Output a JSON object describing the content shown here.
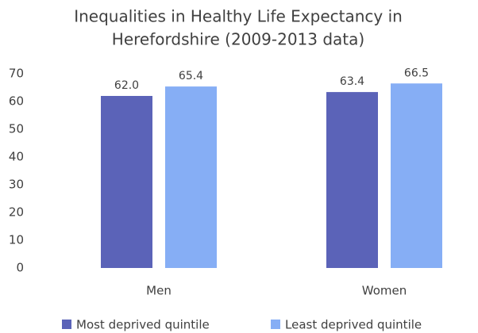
{
  "chart_data": {
    "type": "bar",
    "title": [
      "Inequalities in Healthy Life Expectancy in",
      "Herefordshire (2009-2013 data)"
    ],
    "categories": [
      "Men",
      "Women"
    ],
    "series": [
      {
        "name": "Most deprived quintile",
        "color": "#5b63b8",
        "values": [
          62.0,
          63.4
        ],
        "value_labels": [
          "62.0",
          "63.4"
        ]
      },
      {
        "name": "Least deprived quintile",
        "color": "#86aef5",
        "values": [
          65.4,
          66.5
        ],
        "value_labels": [
          "65.4",
          "66.5"
        ]
      }
    ],
    "ylim": [
      0,
      70
    ],
    "yticks": [
      0,
      10,
      20,
      30,
      40,
      50,
      60,
      70
    ],
    "grid": false,
    "legend": "bottom"
  }
}
